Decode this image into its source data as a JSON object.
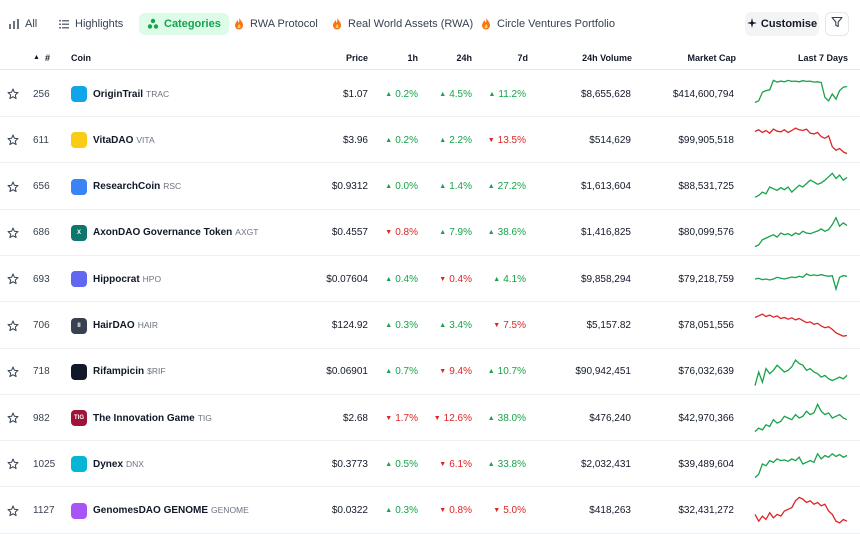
{
  "tabs": [
    {
      "label": "All",
      "icon": "chart-bars-icon"
    },
    {
      "label": "Highlights",
      "icon": "list-icon"
    },
    {
      "label": "Categories",
      "icon": "categories-icon",
      "active": true
    },
    {
      "label": "RWA Protocol",
      "icon": "fire-icon"
    },
    {
      "label": "Real World Assets (RWA)",
      "icon": "fire-icon"
    },
    {
      "label": "Circle Ventures Portfolio",
      "icon": "fire-icon"
    }
  ],
  "customise_label": "Customise",
  "columns": {
    "sort": "▲",
    "rank": "#",
    "coin": "Coin",
    "price": "Price",
    "h1": "1h",
    "h24": "24h",
    "d7": "7d",
    "volume": "24h Volume",
    "mcap": "Market Cap",
    "spark": "Last 7 Days"
  },
  "colors": {
    "up": "#16a34a",
    "down": "#dc2626",
    "accent": "#16a34a"
  },
  "rows": [
    {
      "rank": "256",
      "name": "OriginTrail",
      "symbol": "TRAC",
      "logo_color": "#0ea5e9",
      "logo_text": "",
      "price": "$1.07",
      "h1": "0.2%",
      "h1_dir": "up",
      "h24": "4.5%",
      "h24_dir": "up",
      "d7": "11.2%",
      "d7_dir": "up",
      "volume": "$8,655,628",
      "mcap": "$414,600,794",
      "spark": [
        0.25,
        0.3,
        0.55,
        0.6,
        0.62,
        0.9,
        0.85,
        0.88,
        0.86,
        0.9,
        0.87,
        0.88,
        0.86,
        0.89,
        0.87,
        0.88,
        0.85,
        0.86,
        0.84,
        0.4,
        0.3,
        0.5,
        0.35,
        0.6,
        0.7,
        0.72
      ]
    },
    {
      "rank": "611",
      "name": "VitaDAO",
      "symbol": "VITA",
      "logo_color": "#facc15",
      "logo_text": "",
      "price": "$3.96",
      "h1": "0.2%",
      "h1_dir": "up",
      "h24": "2.2%",
      "h24_dir": "up",
      "d7": "13.5%",
      "d7_dir": "down",
      "volume": "$514,629",
      "mcap": "$99,905,518",
      "spark": [
        0.75,
        0.8,
        0.72,
        0.78,
        0.7,
        0.82,
        0.76,
        0.74,
        0.8,
        0.72,
        0.78,
        0.85,
        0.8,
        0.78,
        0.82,
        0.7,
        0.68,
        0.72,
        0.6,
        0.55,
        0.62,
        0.3,
        0.2,
        0.25,
        0.15,
        0.1
      ]
    },
    {
      "rank": "656",
      "name": "ResearchCoin",
      "symbol": "RSC",
      "logo_color": "#3b82f6",
      "logo_text": "",
      "price": "$0.9312",
      "h1": "0.0%",
      "h1_dir": "up",
      "h24": "1.4%",
      "h24_dir": "up",
      "d7": "27.2%",
      "d7_dir": "up",
      "volume": "$1,613,604",
      "mcap": "$88,531,725",
      "spark": [
        0.2,
        0.25,
        0.35,
        0.3,
        0.5,
        0.45,
        0.4,
        0.48,
        0.42,
        0.5,
        0.35,
        0.45,
        0.55,
        0.5,
        0.6,
        0.7,
        0.65,
        0.58,
        0.62,
        0.7,
        0.8,
        0.9,
        0.75,
        0.85,
        0.7,
        0.78
      ]
    },
    {
      "rank": "686",
      "name": "AxonDAO Governance Token",
      "symbol": "AXGT",
      "logo_color": "#0f766e",
      "logo_text": "X",
      "price": "$0.4557",
      "h1": "0.8%",
      "h1_dir": "down",
      "h24": "7.9%",
      "h24_dir": "up",
      "d7": "38.6%",
      "d7_dir": "up",
      "volume": "$1,416,825",
      "mcap": "$80,099,576",
      "spark": [
        0.1,
        0.15,
        0.3,
        0.35,
        0.4,
        0.45,
        0.38,
        0.5,
        0.45,
        0.48,
        0.42,
        0.5,
        0.46,
        0.55,
        0.5,
        0.48,
        0.52,
        0.56,
        0.62,
        0.55,
        0.6,
        0.75,
        0.95,
        0.7,
        0.8,
        0.72
      ]
    },
    {
      "rank": "693",
      "name": "Hippocrat",
      "symbol": "HPO",
      "logo_color": "#6366f1",
      "logo_text": "",
      "price": "$0.07604",
      "h1": "0.4%",
      "h1_dir": "up",
      "h24": "0.4%",
      "h24_dir": "down",
      "d7": "4.1%",
      "d7_dir": "up",
      "volume": "$9,858,294",
      "mcap": "$79,218,759",
      "spark": [
        0.5,
        0.52,
        0.48,
        0.5,
        0.47,
        0.5,
        0.55,
        0.52,
        0.5,
        0.53,
        0.56,
        0.54,
        0.58,
        0.55,
        0.65,
        0.6,
        0.62,
        0.6,
        0.63,
        0.6,
        0.58,
        0.6,
        0.2,
        0.55,
        0.6,
        0.58
      ]
    },
    {
      "rank": "706",
      "name": "HairDAO",
      "symbol": "HAIR",
      "logo_color": "#374151",
      "logo_text": "II",
      "price": "$124.92",
      "h1": "0.3%",
      "h1_dir": "up",
      "h24": "3.4%",
      "h24_dir": "up",
      "d7": "7.5%",
      "d7_dir": "down",
      "volume": "$5,157.82",
      "mcap": "$78,051,556",
      "spark": [
        0.75,
        0.8,
        0.85,
        0.78,
        0.82,
        0.76,
        0.8,
        0.72,
        0.75,
        0.7,
        0.74,
        0.68,
        0.72,
        0.66,
        0.6,
        0.62,
        0.55,
        0.58,
        0.5,
        0.45,
        0.48,
        0.4,
        0.3,
        0.25,
        0.2,
        0.22
      ]
    },
    {
      "rank": "718",
      "name": "Rifampicin",
      "symbol": "$RIF",
      "logo_color": "#111827",
      "logo_text": "",
      "price": "$0.06901",
      "h1": "0.7%",
      "h1_dir": "up",
      "h24": "9.4%",
      "h24_dir": "down",
      "d7": "10.7%",
      "d7_dir": "up",
      "volume": "$90,942,451",
      "mcap": "$76,032,639",
      "spark": [
        0.1,
        0.5,
        0.2,
        0.6,
        0.45,
        0.55,
        0.7,
        0.6,
        0.5,
        0.55,
        0.65,
        0.85,
        0.75,
        0.7,
        0.55,
        0.6,
        0.5,
        0.45,
        0.35,
        0.4,
        0.3,
        0.25,
        0.3,
        0.35,
        0.3,
        0.4
      ]
    },
    {
      "rank": "982",
      "name": "The Innovation Game",
      "symbol": "TIG",
      "logo_color": "#9f1239",
      "logo_text": "TIG",
      "price": "$2.68",
      "h1": "1.7%",
      "h1_dir": "down",
      "h24": "12.6%",
      "h24_dir": "down",
      "d7": "38.0%",
      "d7_dir": "up",
      "volume": "$476,240",
      "mcap": "$42,970,366",
      "spark": [
        0.1,
        0.2,
        0.15,
        0.3,
        0.25,
        0.45,
        0.35,
        0.4,
        0.55,
        0.5,
        0.45,
        0.6,
        0.5,
        0.55,
        0.7,
        0.6,
        0.65,
        0.9,
        0.7,
        0.6,
        0.65,
        0.5,
        0.55,
        0.6,
        0.5,
        0.45
      ]
    },
    {
      "rank": "1025",
      "name": "Dynex",
      "symbol": "DNX",
      "logo_color": "#06b6d4",
      "logo_text": "",
      "price": "$0.3773",
      "h1": "0.5%",
      "h1_dir": "up",
      "h24": "6.1%",
      "h24_dir": "down",
      "d7": "33.8%",
      "d7_dir": "up",
      "volume": "$2,032,431",
      "mcap": "$39,489,604",
      "spark": [
        0.1,
        0.2,
        0.5,
        0.45,
        0.6,
        0.55,
        0.65,
        0.6,
        0.62,
        0.58,
        0.65,
        0.6,
        0.7,
        0.5,
        0.55,
        0.6,
        0.55,
        0.8,
        0.65,
        0.75,
        0.7,
        0.8,
        0.72,
        0.78,
        0.7,
        0.75
      ]
    },
    {
      "rank": "1127",
      "name": "GenomesDAO GENOME",
      "symbol": "GENOME",
      "logo_color": "#a855f7",
      "logo_text": "",
      "price": "$0.0322",
      "h1": "0.3%",
      "h1_dir": "up",
      "h24": "0.8%",
      "h24_dir": "down",
      "d7": "5.0%",
      "d7_dir": "down",
      "volume": "$418,263",
      "mcap": "$32,431,272",
      "spark": [
        0.4,
        0.2,
        0.35,
        0.25,
        0.45,
        0.3,
        0.4,
        0.35,
        0.5,
        0.55,
        0.6,
        0.8,
        0.9,
        0.85,
        0.75,
        0.8,
        0.7,
        0.75,
        0.65,
        0.7,
        0.5,
        0.4,
        0.2,
        0.15,
        0.25,
        0.2
      ]
    }
  ]
}
